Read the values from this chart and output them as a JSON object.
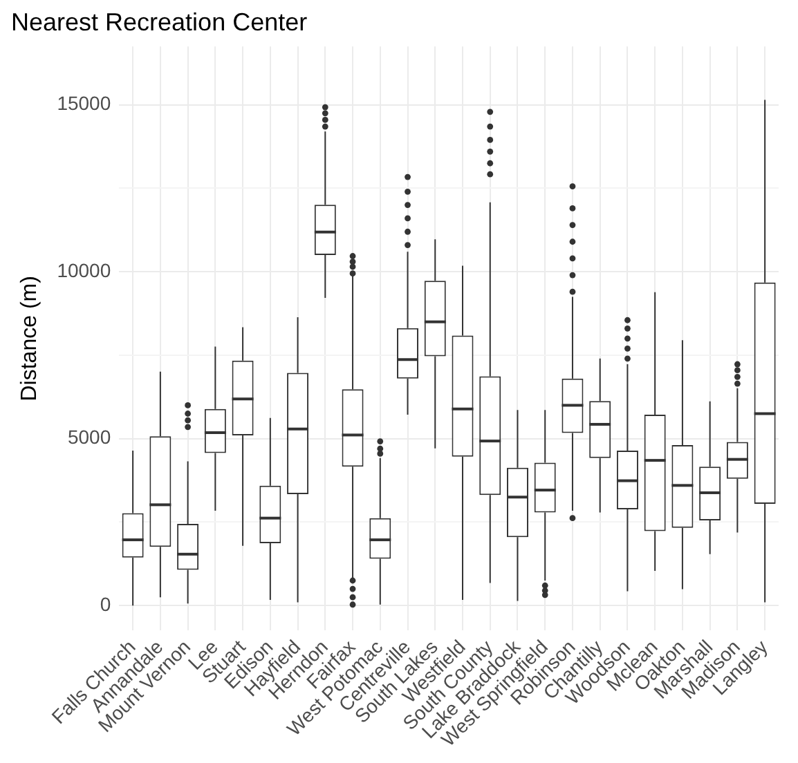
{
  "chart_data": {
    "type": "box",
    "title": "Nearest Recreation Center",
    "ylabel": "Distance (m)",
    "categories": [
      "Falls Church",
      "Annandale",
      "Mount Vernon",
      "Lee",
      "Stuart",
      "Edison",
      "Hayfield",
      "Herndon",
      "Fairfax",
      "West Potomac",
      "Centreville",
      "South Lakes",
      "Westfield",
      "South County",
      "Lake Braddock",
      "West Springfield",
      "Robinson",
      "Chantilly",
      "Woodson",
      "Mclean",
      "Oakton",
      "Marshall",
      "Madison",
      "Langley"
    ],
    "color": "#333333",
    "boxes": [
      {
        "low": 0,
        "q1": 1440,
        "median": 1970,
        "q3": 2770,
        "high": 4640
      },
      {
        "low": 250,
        "q1": 1760,
        "median": 3020,
        "q3": 5070,
        "high": 7010
      },
      {
        "low": 60,
        "q1": 1070,
        "median": 1540,
        "q3": 2450,
        "high": 4320,
        "outliers": [
          5350,
          5550,
          5750,
          6000
        ]
      },
      {
        "low": 2840,
        "q1": 4570,
        "median": 5180,
        "q3": 5890,
        "high": 7760
      },
      {
        "low": 1790,
        "q1": 5100,
        "median": 6190,
        "q3": 7340,
        "high": 8340
      },
      {
        "low": 170,
        "q1": 1870,
        "median": 2620,
        "q3": 3590,
        "high": 5620
      },
      {
        "low": 100,
        "q1": 3340,
        "median": 5290,
        "q3": 6970,
        "high": 8640
      },
      {
        "low": 9220,
        "q1": 10500,
        "median": 11190,
        "q3": 12010,
        "high": 14200,
        "outliers": [
          14350,
          14550,
          14750,
          14930
        ]
      },
      {
        "low": 800,
        "q1": 4160,
        "median": 5110,
        "q3": 6480,
        "high": 9890,
        "outliers": [
          30,
          250,
          500,
          750,
          9950,
          10150,
          10300,
          10470
        ]
      },
      {
        "low": 30,
        "q1": 1400,
        "median": 1970,
        "q3": 2620,
        "high": 4420,
        "outliers": [
          4550,
          4700,
          4920
        ]
      },
      {
        "low": 5720,
        "q1": 6800,
        "median": 7370,
        "q3": 8310,
        "high": 10600,
        "outliers": [
          10800,
          11200,
          11600,
          12000,
          12400,
          12840
        ]
      },
      {
        "low": 4710,
        "q1": 7470,
        "median": 8500,
        "q3": 9730,
        "high": 10970
      },
      {
        "low": 170,
        "q1": 4460,
        "median": 5890,
        "q3": 8090,
        "high": 10180
      },
      {
        "low": 680,
        "q1": 3310,
        "median": 4930,
        "q3": 6870,
        "high": 12080,
        "outliers": [
          12920,
          13250,
          13600,
          13950,
          14350,
          14790
        ]
      },
      {
        "low": 140,
        "q1": 2050,
        "median": 3250,
        "q3": 4130,
        "high": 5860
      },
      {
        "low": 750,
        "q1": 2790,
        "median": 3460,
        "q3": 4280,
        "high": 5860,
        "outliers": [
          320,
          450,
          600
        ]
      },
      {
        "low": 2840,
        "q1": 5170,
        "median": 6000,
        "q3": 6800,
        "high": 9250,
        "outliers": [
          2620,
          9400,
          9900,
          10400,
          10900,
          11400,
          11900,
          12560
        ]
      },
      {
        "low": 2790,
        "q1": 4420,
        "median": 5430,
        "q3": 6130,
        "high": 7400
      },
      {
        "low": 430,
        "q1": 2880,
        "median": 3740,
        "q3": 4640,
        "high": 7230,
        "outliers": [
          7400,
          7700,
          8000,
          8300,
          8550
        ]
      },
      {
        "low": 1040,
        "q1": 2230,
        "median": 4350,
        "q3": 5720,
        "high": 9390
      },
      {
        "low": 490,
        "q1": 2330,
        "median": 3600,
        "q3": 4810,
        "high": 7950
      },
      {
        "low": 1540,
        "q1": 2550,
        "median": 3380,
        "q3": 4160,
        "high": 6120
      },
      {
        "low": 2190,
        "q1": 3800,
        "median": 4380,
        "q3": 4900,
        "high": 6510,
        "outliers": [
          6650,
          6850,
          7050,
          7230
        ]
      },
      {
        "low": 100,
        "q1": 3050,
        "median": 5750,
        "q3": 9680,
        "high": 15150
      }
    ],
    "ylim": [
      -750,
      16750
    ],
    "yticks": [
      0,
      {
        "value": 2500,
        "label": null
      },
      5000,
      {
        "value": 7500,
        "label": null
      },
      10000,
      {
        "value": 12500,
        "label": null
      },
      15000
    ],
    "grid": true
  }
}
